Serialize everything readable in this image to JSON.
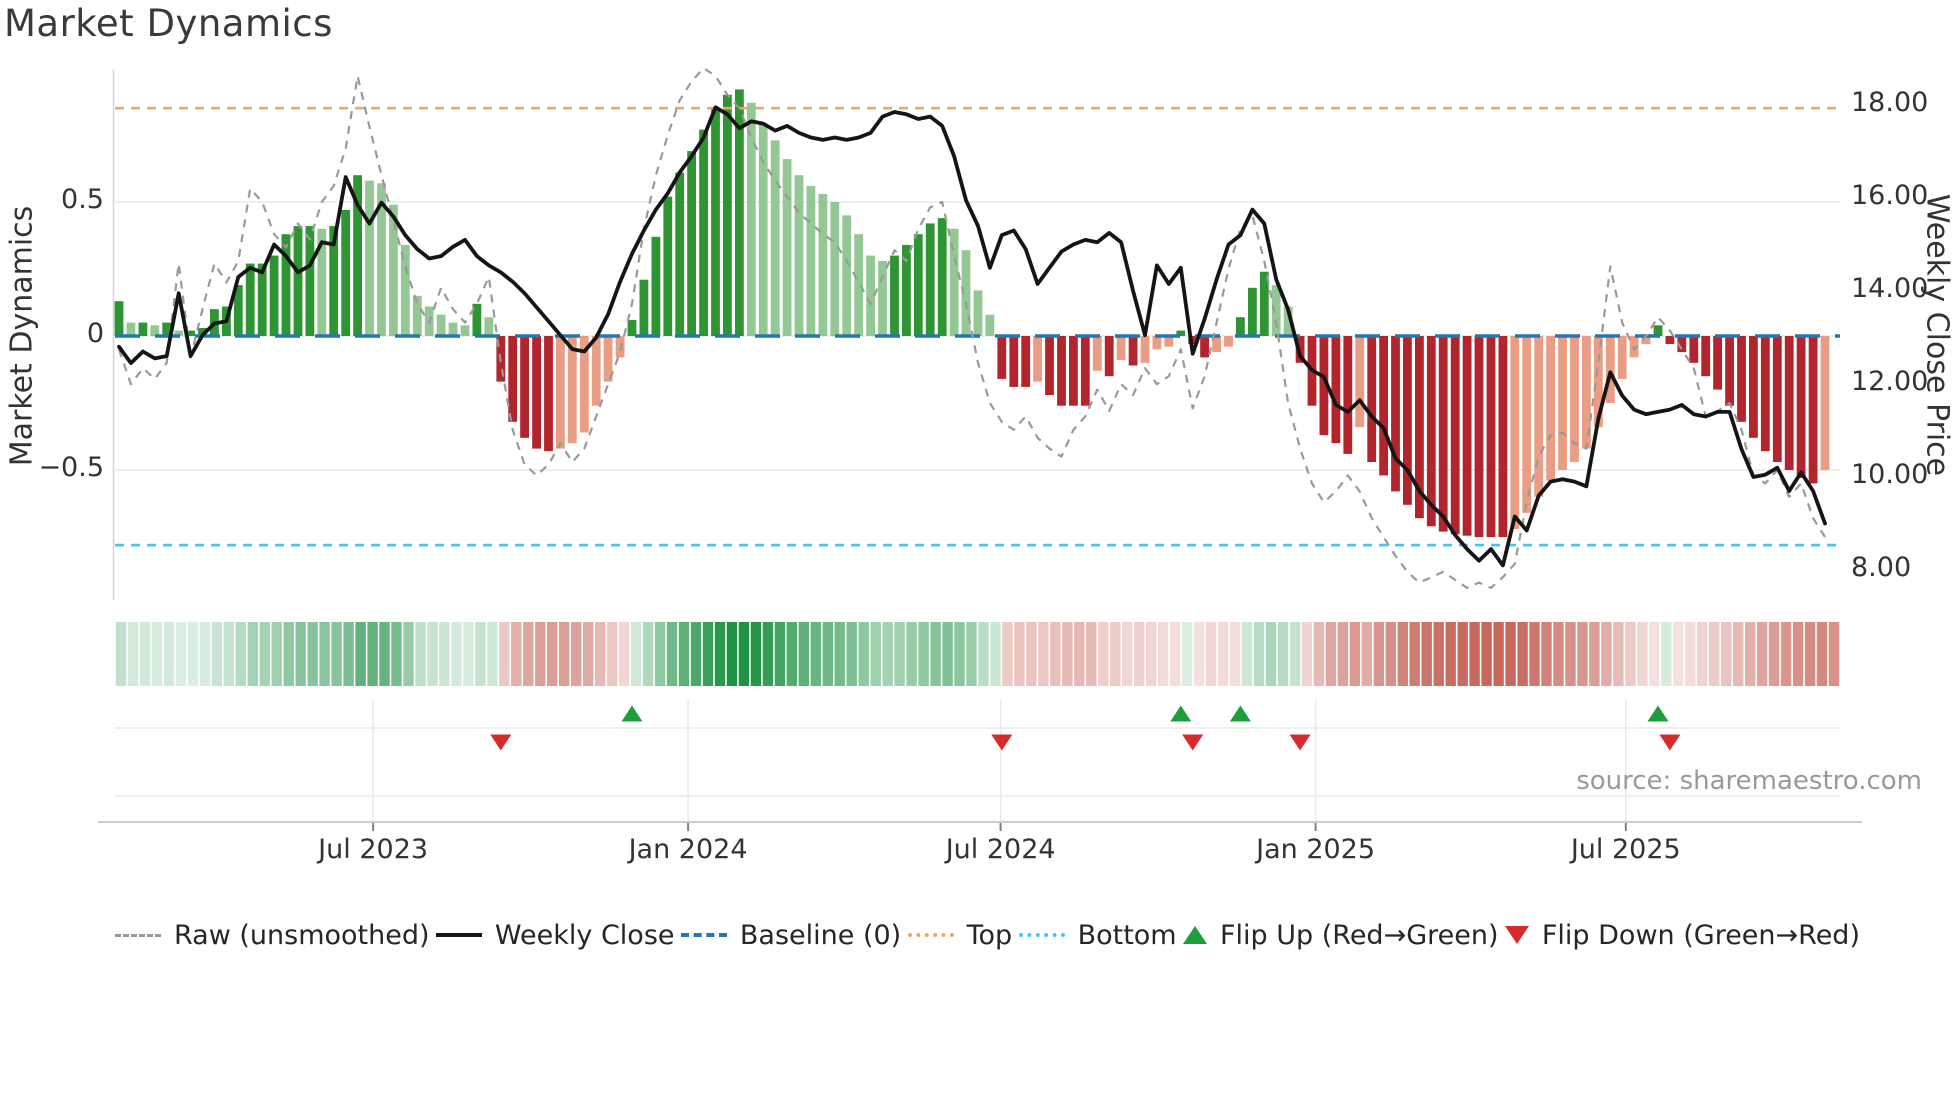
{
  "title": "Market Dynamics",
  "source_text": "source: sharemaestro.com",
  "axes": {
    "left_label": "Market Dynamics",
    "right_label": "Weekly Close Price",
    "left_ticks": [
      {
        "label": "0.5",
        "value": 0.5
      },
      {
        "label": "0",
        "value": 0.0
      },
      {
        "label": "−0.5",
        "value": -0.5
      }
    ],
    "right_ticks": [
      {
        "label": "18.00",
        "value": 18.0
      },
      {
        "label": "16.00",
        "value": 16.0
      },
      {
        "label": "14.00",
        "value": 14.0
      },
      {
        "label": "12.00",
        "value": 12.0
      },
      {
        "label": "10.00",
        "value": 10.0
      },
      {
        "label": "8.00",
        "value": 8.0
      }
    ],
    "x_ticks": [
      {
        "label": "Jul 2023",
        "week": 21.3
      },
      {
        "label": "Jan 2024",
        "week": 47.7
      },
      {
        "label": "Jul 2024",
        "week": 73.9
      },
      {
        "label": "Jan 2025",
        "week": 100.3
      },
      {
        "label": "Jul 2025",
        "week": 126.3
      }
    ]
  },
  "legend": [
    {
      "label": "Raw (unsmoothed)",
      "swatch": "dash-gray"
    },
    {
      "label": "Weekly Close",
      "swatch": "solid-black"
    },
    {
      "label": "Baseline (0)",
      "swatch": "dash-blue"
    },
    {
      "label": "Top",
      "swatch": "dot-orange"
    },
    {
      "label": "Bottom",
      "swatch": "dot-cyan"
    },
    {
      "label": "Flip Up (Red→Green)",
      "swatch": "tri-up"
    },
    {
      "label": "Flip Down (Green→Red)",
      "swatch": "tri-down"
    }
  ],
  "colors": {
    "bar_pos_dark": "#2e9532",
    "bar_pos_light": "#93c793",
    "bar_neg_dark": "#b2252c",
    "bar_neg_light": "#e99d84",
    "line_close": "#151515",
    "line_raw": "#999999",
    "baseline": "#2277b4",
    "top_line": "#f0a562",
    "bottom_line": "#41c7ef",
    "flip_up": "#1c9e3d",
    "flip_down": "#d62b2b",
    "heat_pos": "#1f9245",
    "heat_neg": "#bf4f41",
    "grid": "#e9e9e9",
    "axis_line": "#cccccc",
    "spine": "#d6d6d6"
  },
  "chart_data": {
    "type": "bar+line",
    "frequency": "weekly",
    "start_date": "2023-02-06",
    "weeks": 144,
    "left_ylim": [
      -1.0,
      1.0
    ],
    "right_ylim": [
      7.0,
      19.0
    ],
    "grid": "horizontal at 0.5, 0, -0.5",
    "legend_position": "bottom",
    "thresholds": {
      "baseline": 0.0,
      "top": 0.85,
      "bottom": -0.78
    },
    "flip_up_weeks": [
      43,
      89,
      94,
      129
    ],
    "flip_down_weeks": [
      32,
      74,
      90,
      99,
      130
    ],
    "series": [
      {
        "name": "Market Dynamics (smoothed bars)",
        "axis": "left",
        "type": "bar",
        "color_rule": "green if >=0 else red; dark shade when |value| rising or sign flips, light when fading",
        "values": [
          0.13,
          0.05,
          0.05,
          0.04,
          0.05,
          0.02,
          0.02,
          0.03,
          0.1,
          0.11,
          0.19,
          0.27,
          0.27,
          0.3,
          0.38,
          0.41,
          0.41,
          0.4,
          0.41,
          0.47,
          0.6,
          0.58,
          0.57,
          0.49,
          0.34,
          0.15,
          0.11,
          0.08,
          0.05,
          0.04,
          0.12,
          0.07,
          -0.17,
          -0.32,
          -0.38,
          -0.42,
          -0.43,
          -0.42,
          -0.4,
          -0.36,
          -0.26,
          -0.17,
          -0.08,
          0.06,
          0.21,
          0.37,
          0.52,
          0.61,
          0.69,
          0.77,
          0.85,
          0.9,
          0.92,
          0.87,
          0.79,
          0.73,
          0.66,
          0.6,
          0.56,
          0.53,
          0.5,
          0.45,
          0.38,
          0.3,
          0.28,
          0.3,
          0.34,
          0.38,
          0.42,
          0.44,
          0.4,
          0.32,
          0.17,
          0.08,
          -0.16,
          -0.19,
          -0.19,
          -0.17,
          -0.22,
          -0.26,
          -0.26,
          -0.26,
          -0.13,
          -0.15,
          -0.09,
          -0.11,
          -0.1,
          -0.05,
          -0.04,
          0.02,
          -0.03,
          -0.08,
          -0.06,
          -0.04,
          0.07,
          0.18,
          0.24,
          0.19,
          0.11,
          -0.1,
          -0.26,
          -0.37,
          -0.4,
          -0.44,
          -0.34,
          -0.47,
          -0.52,
          -0.58,
          -0.63,
          -0.68,
          -0.71,
          -0.73,
          -0.74,
          -0.745,
          -0.75,
          -0.75,
          -0.75,
          -0.72,
          -0.66,
          -0.6,
          -0.54,
          -0.5,
          -0.47,
          -0.42,
          -0.34,
          -0.25,
          -0.16,
          -0.08,
          -0.03,
          0.04,
          -0.03,
          -0.06,
          -0.1,
          -0.15,
          -0.2,
          -0.26,
          -0.32,
          -0.38,
          -0.43,
          -0.47,
          -0.5,
          -0.53,
          -0.55,
          -0.5
        ]
      },
      {
        "name": "Raw (unsmoothed)",
        "axis": "left",
        "type": "line-dashed",
        "values": [
          -0.05,
          -0.18,
          -0.12,
          -0.16,
          -0.1,
          0.27,
          -0.08,
          0.1,
          0.27,
          0.2,
          0.28,
          0.55,
          0.5,
          0.38,
          0.33,
          0.42,
          0.36,
          0.5,
          0.56,
          0.7,
          0.97,
          0.78,
          0.6,
          0.43,
          0.26,
          0.12,
          0.05,
          0.18,
          0.1,
          0.05,
          0.12,
          0.22,
          -0.1,
          -0.35,
          -0.48,
          -0.52,
          -0.48,
          -0.4,
          -0.47,
          -0.42,
          -0.3,
          -0.18,
          -0.06,
          0.12,
          0.4,
          0.6,
          0.75,
          0.88,
          0.95,
          1.0,
          0.97,
          0.9,
          0.85,
          0.74,
          0.65,
          0.58,
          0.52,
          0.46,
          0.42,
          0.38,
          0.35,
          0.28,
          0.2,
          0.12,
          0.22,
          0.32,
          0.28,
          0.4,
          0.48,
          0.5,
          0.3,
          0.12,
          -0.1,
          -0.25,
          -0.32,
          -0.35,
          -0.3,
          -0.38,
          -0.42,
          -0.45,
          -0.35,
          -0.3,
          -0.2,
          -0.28,
          -0.18,
          -0.22,
          -0.12,
          -0.18,
          -0.15,
          -0.05,
          -0.27,
          -0.15,
          0.05,
          0.25,
          0.4,
          0.45,
          0.28,
          0.05,
          -0.25,
          -0.42,
          -0.55,
          -0.62,
          -0.58,
          -0.52,
          -0.58,
          -0.68,
          -0.75,
          -0.82,
          -0.88,
          -0.92,
          -0.9,
          -0.88,
          -0.91,
          -0.94,
          -0.92,
          -0.94,
          -0.9,
          -0.85,
          -0.62,
          -0.45,
          -0.37,
          -0.36,
          -0.4,
          -0.42,
          -0.1,
          0.26,
          0.05,
          -0.05,
          0.0,
          0.07,
          0.02,
          -0.05,
          -0.12,
          -0.3,
          -0.28,
          -0.25,
          -0.35,
          -0.52,
          -0.55,
          -0.5,
          -0.6,
          -0.55,
          -0.68,
          -0.75
        ]
      },
      {
        "name": "Weekly Close",
        "axis": "right",
        "type": "line",
        "values": [
          12.8,
          12.45,
          12.7,
          12.55,
          12.6,
          13.95,
          12.6,
          13.05,
          13.3,
          13.35,
          14.3,
          14.5,
          14.4,
          15.0,
          14.75,
          14.4,
          14.55,
          15.05,
          15.0,
          16.45,
          15.85,
          15.45,
          15.9,
          15.6,
          15.2,
          14.9,
          14.7,
          14.75,
          14.95,
          15.1,
          14.75,
          14.55,
          14.4,
          14.2,
          13.95,
          13.65,
          13.35,
          13.05,
          12.75,
          12.7,
          13.0,
          13.5,
          14.2,
          14.8,
          15.3,
          15.75,
          16.1,
          16.55,
          16.9,
          17.3,
          17.95,
          17.8,
          17.5,
          17.65,
          17.6,
          17.45,
          17.55,
          17.4,
          17.3,
          17.25,
          17.3,
          17.25,
          17.3,
          17.4,
          17.75,
          17.85,
          17.8,
          17.7,
          17.75,
          17.55,
          16.9,
          15.95,
          15.4,
          14.5,
          15.2,
          15.3,
          14.9,
          14.15,
          14.5,
          14.85,
          15.0,
          15.1,
          15.05,
          15.25,
          15.05,
          14.0,
          13.05,
          14.55,
          14.15,
          14.5,
          12.65,
          13.4,
          14.25,
          15.0,
          15.2,
          15.75,
          15.45,
          14.25,
          13.6,
          12.6,
          12.3,
          12.15,
          11.55,
          11.4,
          11.65,
          11.3,
          11.05,
          10.4,
          10.15,
          9.7,
          9.4,
          9.15,
          8.75,
          8.45,
          8.2,
          8.45,
          8.1,
          9.15,
          8.85,
          9.6,
          9.9,
          9.95,
          9.9,
          9.8,
          11.25,
          12.25,
          11.75,
          11.45,
          11.35,
          11.4,
          11.45,
          11.55,
          11.35,
          11.3,
          11.4,
          11.4,
          10.6,
          10.0,
          10.05,
          10.2,
          9.7,
          10.1,
          9.7,
          9.0
        ]
      }
    ],
    "heatmap_strip": "one cell per week, green/red shade proportional to bar value"
  }
}
